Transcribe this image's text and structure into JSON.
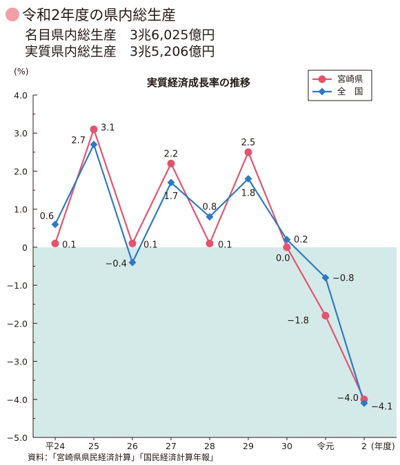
{
  "header": {
    "title": "令和2年度の県内総生産",
    "bullet_color": "#f0a1a8",
    "stats": [
      {
        "label": "名目県内総生産",
        "value": "3兆6,025億円"
      },
      {
        "label": "実質県内総生産",
        "value": "3兆5,206億円"
      }
    ]
  },
  "chart_data": {
    "type": "line",
    "title": "実質経済成長率の推移",
    "y_unit": "(%)",
    "x_unit": "(年度)",
    "categories": [
      "平24",
      "25",
      "26",
      "27",
      "28",
      "29",
      "30",
      "令元",
      "2"
    ],
    "ylim": [
      -5.0,
      4.0
    ],
    "yticks": [
      "4.0",
      "3.0",
      "2.0",
      "1.0",
      "0",
      "−1.0",
      "−2.0",
      "−3.0",
      "−4.0",
      "−5.0"
    ],
    "negative_region_color": "#d4eae8",
    "series": [
      {
        "name": "宮崎県",
        "color": "#e2546d",
        "marker": "circle",
        "values": [
          0.1,
          3.1,
          0.1,
          2.2,
          0.1,
          2.5,
          0.0,
          -1.8,
          -4.0
        ],
        "labels": [
          "0.1",
          "3.1",
          "0.1",
          "2.2",
          "0.1",
          "2.5",
          "0.0",
          "−1.8",
          "−4.0"
        ]
      },
      {
        "name": "全　国",
        "color": "#2f78c4",
        "marker": "diamond",
        "values": [
          0.6,
          2.7,
          -0.4,
          1.7,
          0.8,
          1.8,
          0.2,
          -0.8,
          -4.1
        ],
        "labels": [
          "0.6",
          "2.7",
          "−0.4",
          "1.7",
          "0.8",
          "1.8",
          "0.2",
          "−0.8",
          "−4.1"
        ]
      }
    ],
    "legend_position": "top-right",
    "source": "資料：「宮崎県県民経済計算」「国民経済計算年報」"
  }
}
